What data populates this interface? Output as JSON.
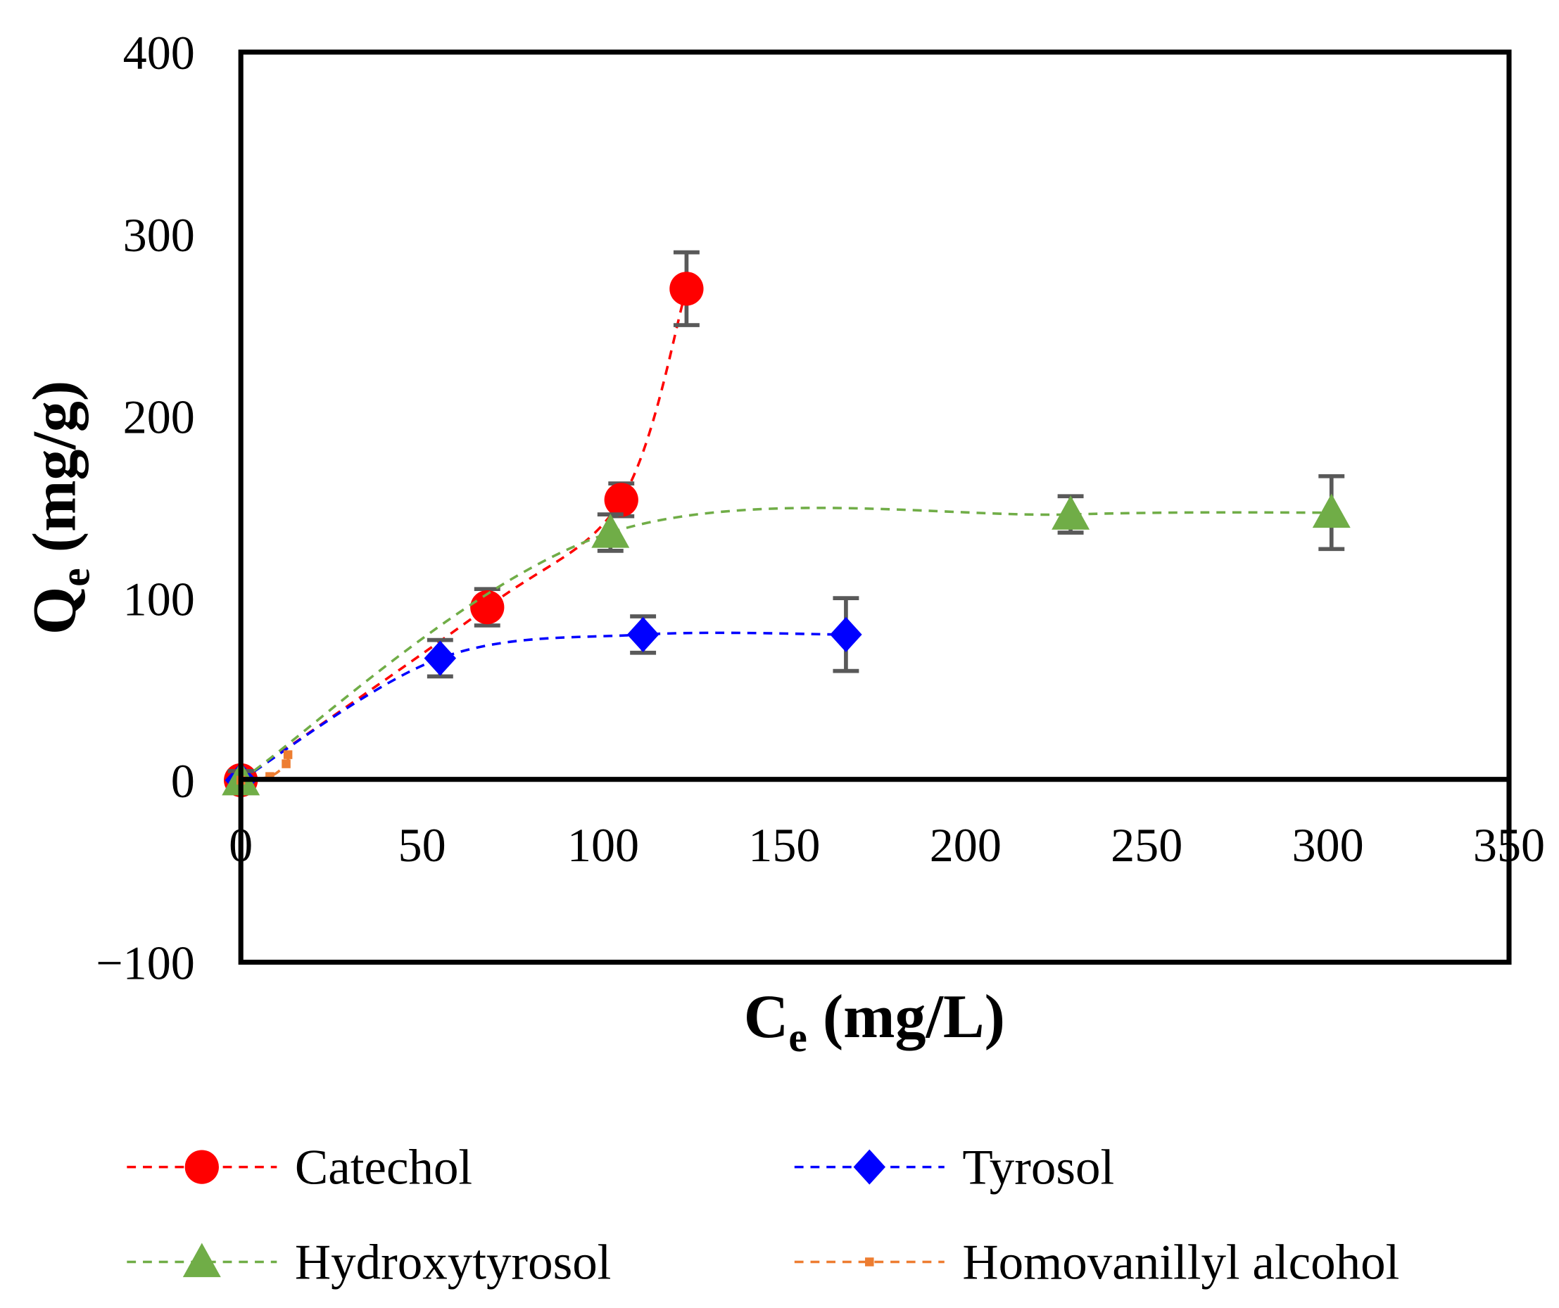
{
  "chart_data": {
    "type": "scatter",
    "title": "",
    "xlabel": "C",
    "xlabel_sub": "e",
    "xlabel_unit": "(mg/L)",
    "ylabel": "Q",
    "ylabel_sub": "e",
    "ylabel_unit": "(mg/g)",
    "xlim": [
      0,
      350
    ],
    "ylim": [
      -100,
      400
    ],
    "xticks": [
      "0",
      "50",
      "100",
      "150",
      "200",
      "250",
      "300",
      "350"
    ],
    "xtick_values": [
      0,
      50,
      100,
      150,
      200,
      250,
      300,
      350
    ],
    "yticks": [
      "−100",
      "0",
      "100",
      "200",
      "300",
      "400"
    ],
    "ytick_values": [
      -100,
      0,
      100,
      200,
      300,
      400
    ],
    "grid": false,
    "legend_position": "bottom",
    "series": [
      {
        "name": "Catechol",
        "color": "#ff0000",
        "marker": "circle",
        "x": [
          0,
          68,
          105,
          123
        ],
        "y": [
          0,
          95,
          154,
          270
        ],
        "err": [
          0,
          10,
          9,
          20
        ]
      },
      {
        "name": "Tyrosol",
        "color": "#0000ff",
        "marker": "diamond",
        "x": [
          0,
          55,
          111,
          167
        ],
        "y": [
          0,
          67,
          80,
          80
        ],
        "err": [
          0,
          10,
          10,
          20
        ]
      },
      {
        "name": "Hydroxytyrosol",
        "color": "#70ad47",
        "marker": "triangle",
        "x": [
          0,
          102,
          229,
          301
        ],
        "y": [
          0,
          136,
          146,
          147
        ],
        "err": [
          5,
          10,
          10,
          20
        ]
      },
      {
        "name": "Homovanillyl alcohol",
        "color": "#ed7d31",
        "marker": "square",
        "x": [
          0,
          8,
          12.5,
          13
        ],
        "y": [
          0,
          2,
          9,
          14
        ],
        "err": [
          0,
          0,
          0,
          0
        ]
      }
    ]
  }
}
